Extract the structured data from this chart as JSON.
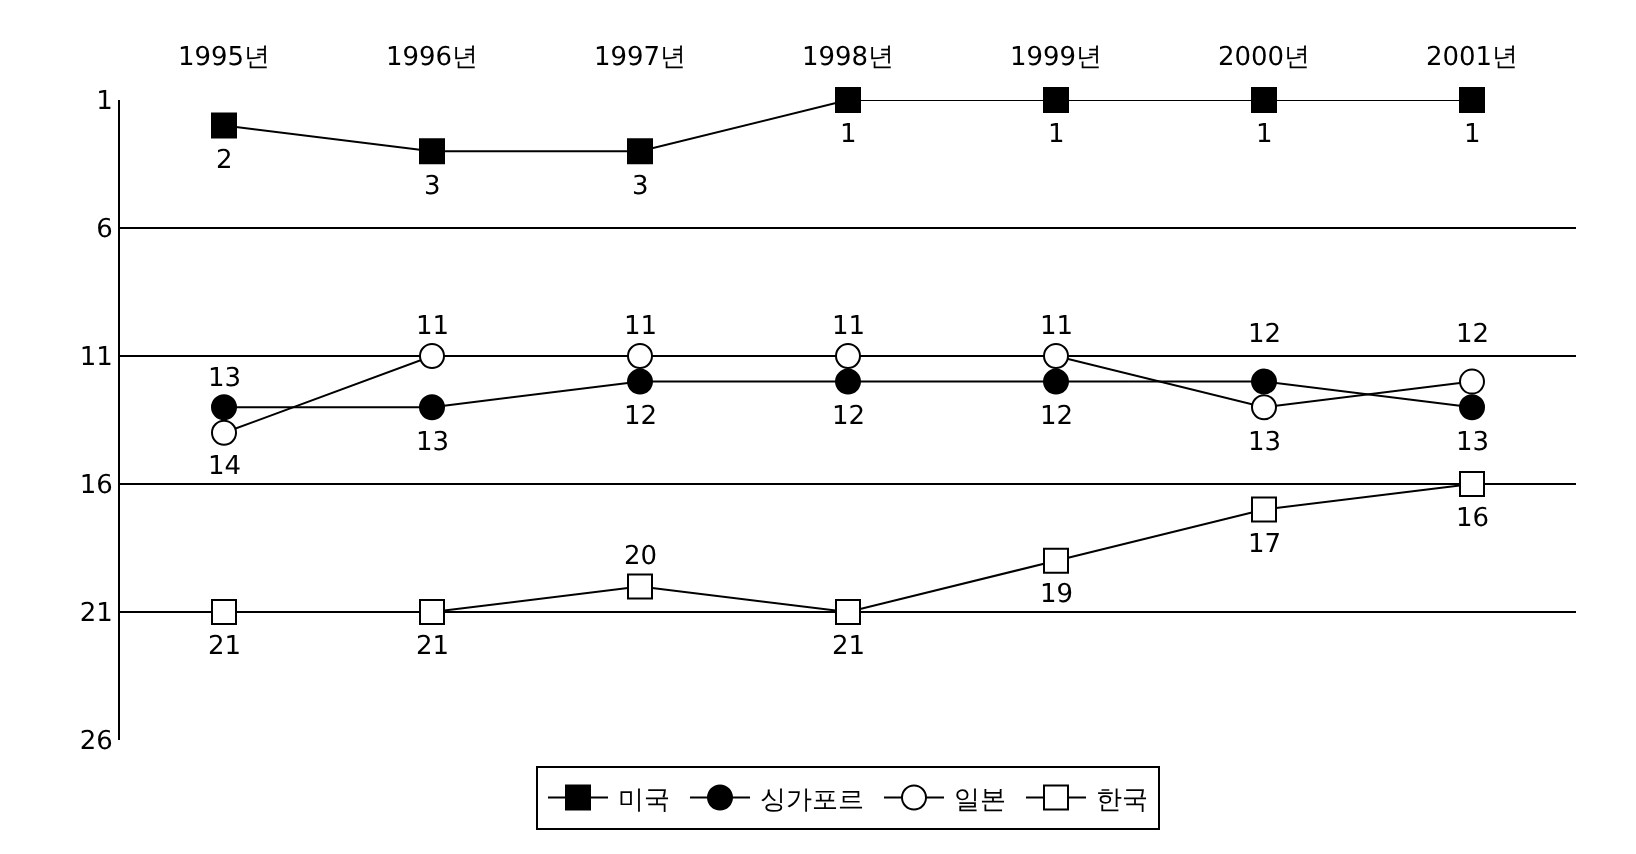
{
  "chart_data": {
    "type": "line",
    "categories": [
      "1995년",
      "1996년",
      "1997년",
      "1998년",
      "1999년",
      "2000년",
      "2001년"
    ],
    "series": [
      {
        "name": "미국",
        "color": "#000000",
        "marker": "square",
        "values": [
          2,
          3,
          3,
          1,
          1,
          1,
          1
        ]
      },
      {
        "name": "싱가포르",
        "color": "#000000",
        "marker": "circle",
        "values": [
          13,
          13,
          12,
          12,
          12,
          12,
          13
        ]
      },
      {
        "name": "일본",
        "color": "#000000",
        "marker": "circle-open",
        "values": [
          14,
          11,
          11,
          11,
          11,
          13,
          12
        ]
      },
      {
        "name": "한국",
        "color": "#000000",
        "marker": "square-open",
        "values": [
          21,
          21,
          20,
          21,
          19,
          17,
          16
        ]
      }
    ],
    "ylim": [
      26,
      1
    ],
    "yticks": [
      1,
      6,
      11,
      16,
      21,
      26
    ],
    "grid": "y",
    "legend": "bottom",
    "data_labels": true,
    "line_style": "solid"
  }
}
